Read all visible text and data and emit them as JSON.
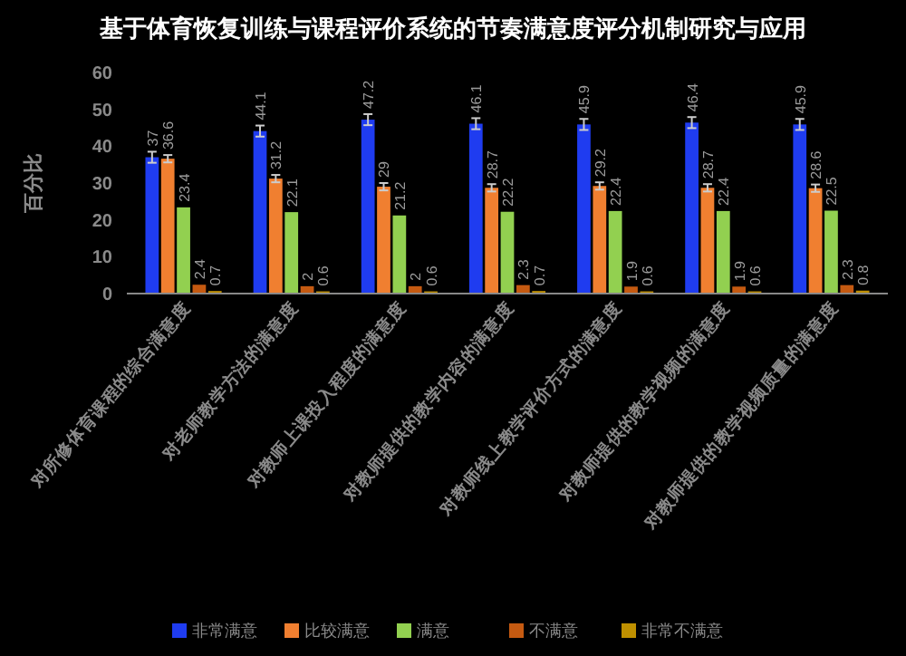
{
  "chart_data": {
    "type": "bar",
    "title": "基于体育恢复训练与课程评价系统的节奏满意度评分机制研究与应用",
    "ylabel": "百分比",
    "categories": [
      "对所修体育课程的综合满意度",
      "对老师教学方法的满意度",
      "对教师上课投入程度的满意度",
      "对教师提供的教学内容的满意度",
      "对教师线上教学评价方式的满意度",
      "对教师提供的教学视频的满意度",
      "对教师提供的教学视频质量的满意度"
    ],
    "series": [
      {
        "name": "非常满意",
        "color": "#1f3cf0",
        "values": [
          37,
          44.1,
          47.2,
          46.1,
          45.9,
          46.4,
          45.9
        ],
        "errors": [
          1.5,
          1.5,
          1.5,
          1.5,
          1.5,
          1.5,
          1.5
        ]
      },
      {
        "name": "比较满意",
        "color": "#f07f30",
        "values": [
          36.6,
          31.2,
          29,
          28.7,
          29.2,
          28.7,
          28.6
        ],
        "errors": [
          1,
          1,
          1,
          1,
          1,
          1,
          1
        ]
      },
      {
        "name": "满意",
        "color": "#92d050",
        "values": [
          23.4,
          22.1,
          21.2,
          22.2,
          22.4,
          22.4,
          22.5
        ]
      },
      {
        "name": "不满意",
        "color": "#c55a11",
        "values": [
          2.4,
          2,
          2,
          2.3,
          1.9,
          1.9,
          2.3
        ]
      },
      {
        "name": "非常不满意",
        "color": "#bf9000",
        "values": [
          0.7,
          0.6,
          0.6,
          0.7,
          0.6,
          0.6,
          0.8
        ]
      }
    ],
    "ylim": [
      0,
      60
    ],
    "yticks": [
      0,
      10,
      20,
      30,
      40,
      50,
      60
    ],
    "data_labels": true,
    "legend": "bottom"
  }
}
